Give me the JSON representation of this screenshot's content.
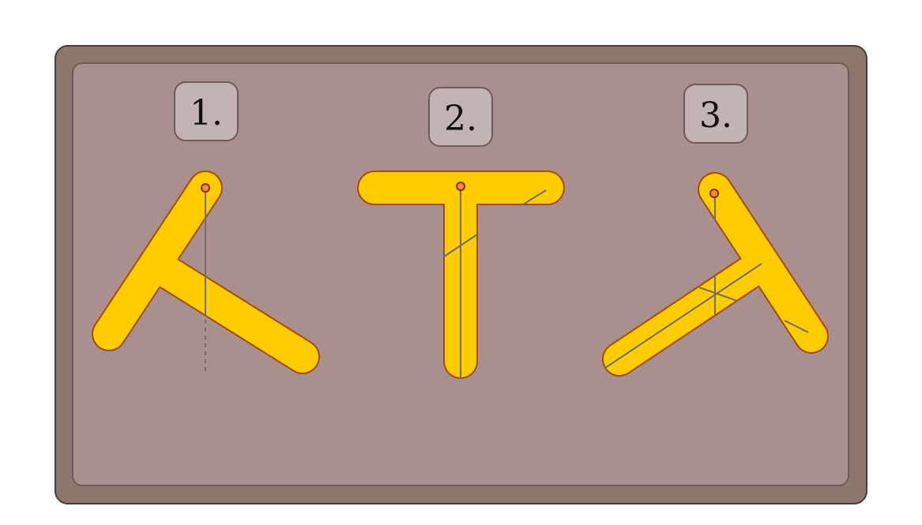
{
  "colors": {
    "page_background": "#ffffff",
    "frame_outer": "#8c776c",
    "frame_outer_stroke": "#4a3d37",
    "panel": "#a98f8e",
    "panel_stroke": "#6e5a57",
    "label_fill": "#c4b3b3",
    "label_stroke": "#6e5a57",
    "shape_fill": "#ffcc00",
    "shape_stroke": "#a84a0a",
    "guide_line": "#6e6e6e",
    "pivot_fill": "#f08c3c",
    "pivot_stroke": "#8a2a0a"
  },
  "steps": [
    {
      "label": "1.",
      "shape": "t-shape",
      "rotation_deg": 34,
      "note_icon": "pivot-point-icon"
    },
    {
      "label": "2.",
      "shape": "t-shape",
      "rotation_deg": 0,
      "note_icon": "pivot-point-icon"
    },
    {
      "label": "3.",
      "shape": "t-shape",
      "rotation_deg": -34,
      "note_icon": "pivot-point-icon"
    }
  ]
}
